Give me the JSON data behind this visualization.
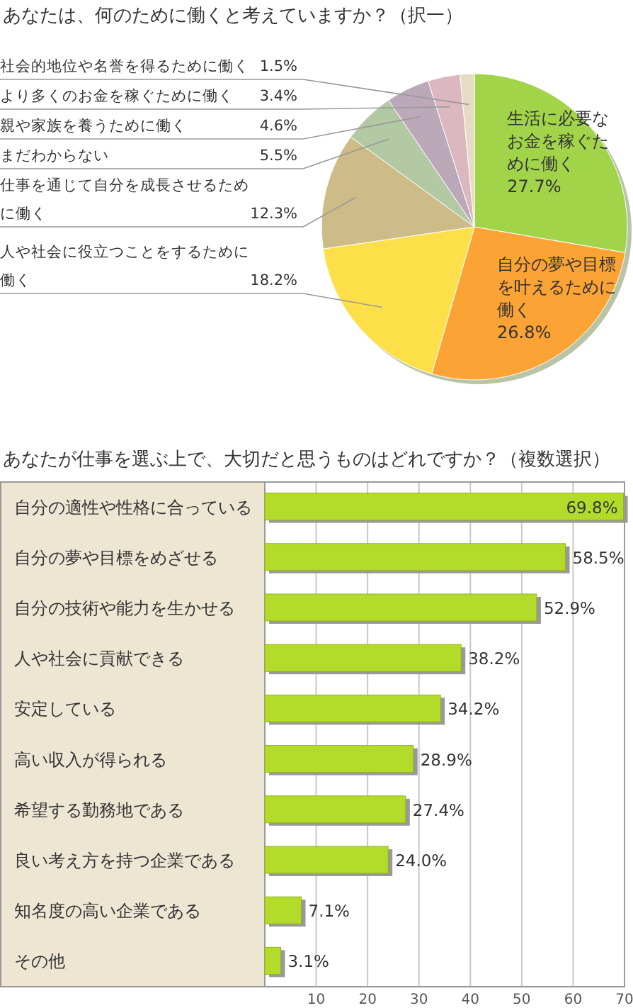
{
  "chart_data": [
    {
      "type": "pie",
      "title": "あなたは、何のために働くと考えていますか？（択一）",
      "categories": [
        "生活に必要なお金を稼ぐために働く",
        "自分の夢や目標を叶えるために働く",
        "人や社会に役立つことをするために働く",
        "仕事を通じて自分を成長させるために働く",
        "まだわからない",
        "親や家族を養うために働く",
        "より多くのお金を稼ぐために働く",
        "社会的地位や名誉を得るために働く"
      ],
      "values": [
        27.7,
        26.8,
        18.2,
        12.3,
        5.5,
        4.6,
        3.4,
        1.5
      ],
      "colors": [
        "#a2d44a",
        "#fba334",
        "#fde049",
        "#cdbb88",
        "#b3c9a3",
        "#bba8b8",
        "#dbb7c0",
        "#e5dcc3"
      ],
      "value_labels": [
        "27.7%",
        "26.8%",
        "18.2%",
        "12.3%",
        "5.5%",
        "4.6%",
        "3.4%",
        "1.5%"
      ]
    },
    {
      "type": "bar",
      "orientation": "horizontal",
      "title": "あなたが仕事を選ぶ上で、大切だと思うものはどれですか？（複数選択）",
      "categories": [
        "自分の適性や性格に合っている",
        "自分の夢や目標をめざせる",
        "自分の技術や能力を生かせる",
        "人や社会に貢献できる",
        "安定している",
        "高い収入が得られる",
        "希望する勤務地である",
        "良い考え方を持つ企業である",
        "知名度の高い企業である",
        "その他"
      ],
      "values": [
        69.8,
        58.5,
        52.9,
        38.2,
        34.2,
        28.9,
        27.4,
        24.0,
        7.1,
        3.1
      ],
      "color": "#b3dc2a",
      "value_labels": [
        "69.8%",
        "58.5%",
        "52.9%",
        "38.2%",
        "34.2%",
        "28.9%",
        "27.4%",
        "24.0%",
        "7.1%",
        "3.1%"
      ],
      "xlim": [
        0,
        70
      ],
      "xticks": [
        {
          "value": 0,
          "label": null
        },
        10,
        20,
        30,
        40,
        50,
        60,
        70
      ],
      "grid": "x"
    }
  ]
}
